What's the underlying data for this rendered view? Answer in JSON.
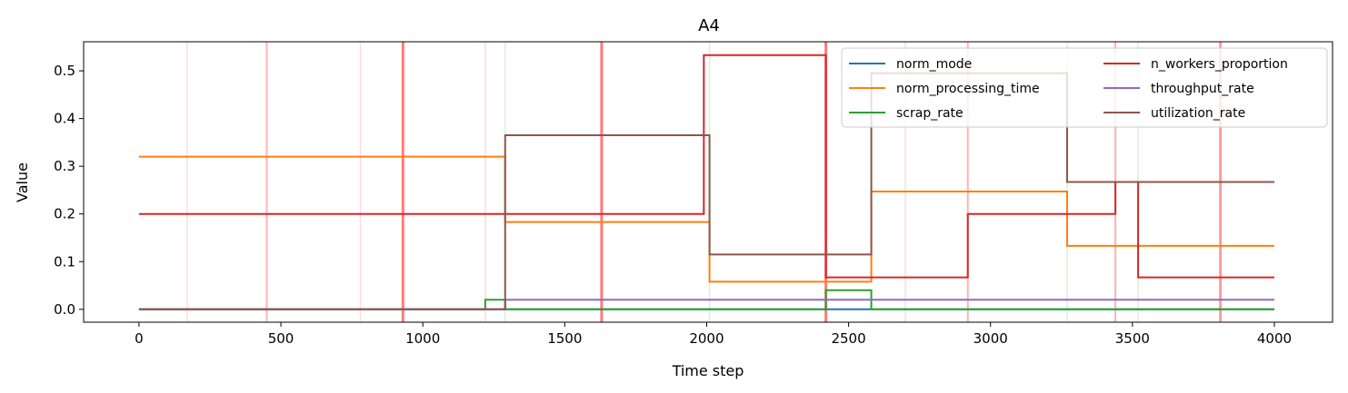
{
  "chart_data": {
    "type": "line",
    "title": "A4",
    "xlabel": "Time step",
    "ylabel": "Value",
    "xlim": [
      -195,
      4205
    ],
    "ylim": [
      -0.027,
      0.561
    ],
    "xticks": [
      0,
      500,
      1000,
      1500,
      2000,
      2500,
      3000,
      3500,
      4000
    ],
    "xtick_labels": [
      "0",
      "500",
      "1000",
      "1500",
      "2000",
      "2500",
      "3000",
      "3500",
      "4000"
    ],
    "yticks": [
      0.0,
      0.1,
      0.2,
      0.3,
      0.4,
      0.5
    ],
    "ytick_labels": [
      "0.0",
      "0.1",
      "0.2",
      "0.3",
      "0.4",
      "0.5"
    ],
    "legend": {
      "position": "upper right",
      "columns": 2
    },
    "grid": false,
    "step_plot": true,
    "series": [
      {
        "name": "norm_mode",
        "color": "#1f77b4",
        "steps": [
          [
            0,
            0.0
          ],
          [
            4000,
            0.0
          ]
        ]
      },
      {
        "name": "norm_processing_time",
        "color": "#ff7f0e",
        "steps": [
          [
            0,
            0.32
          ],
          [
            1290,
            0.183
          ],
          [
            2010,
            0.058
          ],
          [
            2580,
            0.247
          ],
          [
            3270,
            0.133
          ],
          [
            4000,
            0.133
          ]
        ]
      },
      {
        "name": "scrap_rate",
        "color": "#2ca02c",
        "steps": [
          [
            0,
            0.0
          ],
          [
            1220,
            0.02
          ],
          [
            1290,
            0.0
          ],
          [
            2420,
            0.04
          ],
          [
            2580,
            0.0
          ],
          [
            4000,
            0.0
          ]
        ]
      },
      {
        "name": "n_workers_proportion",
        "color": "#d62728",
        "steps": [
          [
            0,
            0.2
          ],
          [
            1990,
            0.533
          ],
          [
            2420,
            0.067
          ],
          [
            2920,
            0.2
          ],
          [
            3440,
            0.267
          ],
          [
            3520,
            0.067
          ],
          [
            4000,
            0.067
          ]
        ]
      },
      {
        "name": "throughput_rate",
        "color": "#9467bd",
        "steps": [
          [
            0,
            0.0
          ],
          [
            1290,
            0.02
          ],
          [
            4000,
            0.02
          ]
        ]
      },
      {
        "name": "utilization_rate",
        "color": "#8c564b",
        "steps": [
          [
            0,
            0.0
          ],
          [
            1290,
            0.365
          ],
          [
            2010,
            0.115
          ],
          [
            2580,
            0.495
          ],
          [
            3270,
            0.267
          ],
          [
            4000,
            0.267
          ]
        ]
      }
    ],
    "vertical_markers": [
      {
        "x": 170,
        "color": "#ff9999",
        "strength": "faint"
      },
      {
        "x": 450,
        "color": "#ff6666",
        "strength": "light"
      },
      {
        "x": 780,
        "color": "#ff9999",
        "strength": "faint"
      },
      {
        "x": 930,
        "color": "#ff3333",
        "strength": "strong"
      },
      {
        "x": 1220,
        "color": "#ff9999",
        "strength": "faint"
      },
      {
        "x": 1290,
        "color": "#99cc99",
        "strength": "faint"
      },
      {
        "x": 1630,
        "color": "#ff3333",
        "strength": "strong"
      },
      {
        "x": 2010,
        "color": "#99cc99",
        "strength": "faint"
      },
      {
        "x": 2420,
        "color": "#ff3333",
        "strength": "strong"
      },
      {
        "x": 2700,
        "color": "#ff9999",
        "strength": "faint"
      },
      {
        "x": 2920,
        "color": "#ff6666",
        "strength": "light"
      },
      {
        "x": 3270,
        "color": "#99cc99",
        "strength": "faint"
      },
      {
        "x": 3440,
        "color": "#ff6666",
        "strength": "light"
      },
      {
        "x": 3520,
        "color": "#99cc99",
        "strength": "faint"
      },
      {
        "x": 3810,
        "color": "#ff6666",
        "strength": "strong"
      }
    ]
  }
}
